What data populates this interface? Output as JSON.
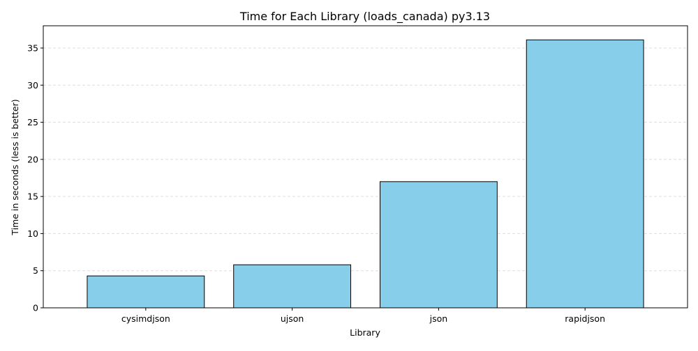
{
  "chart_data": {
    "type": "bar",
    "title": "Time for Each Library (loads_canada) py3.13",
    "xlabel": "Library",
    "ylabel": "Time in seconds (less is better)",
    "categories": [
      "cysimdjson",
      "ujson",
      "json",
      "rapidjson"
    ],
    "values": [
      4.3,
      5.8,
      17.0,
      36.1
    ],
    "ylim": [
      0,
      38
    ],
    "yticks": [
      "0",
      "5",
      "10",
      "15",
      "20",
      "25",
      "30",
      "35"
    ],
    "grid": "y-dashed",
    "bar_color": "#87CEEB",
    "bar_edge_color": "#000000",
    "grid_color": "#dddddd"
  }
}
